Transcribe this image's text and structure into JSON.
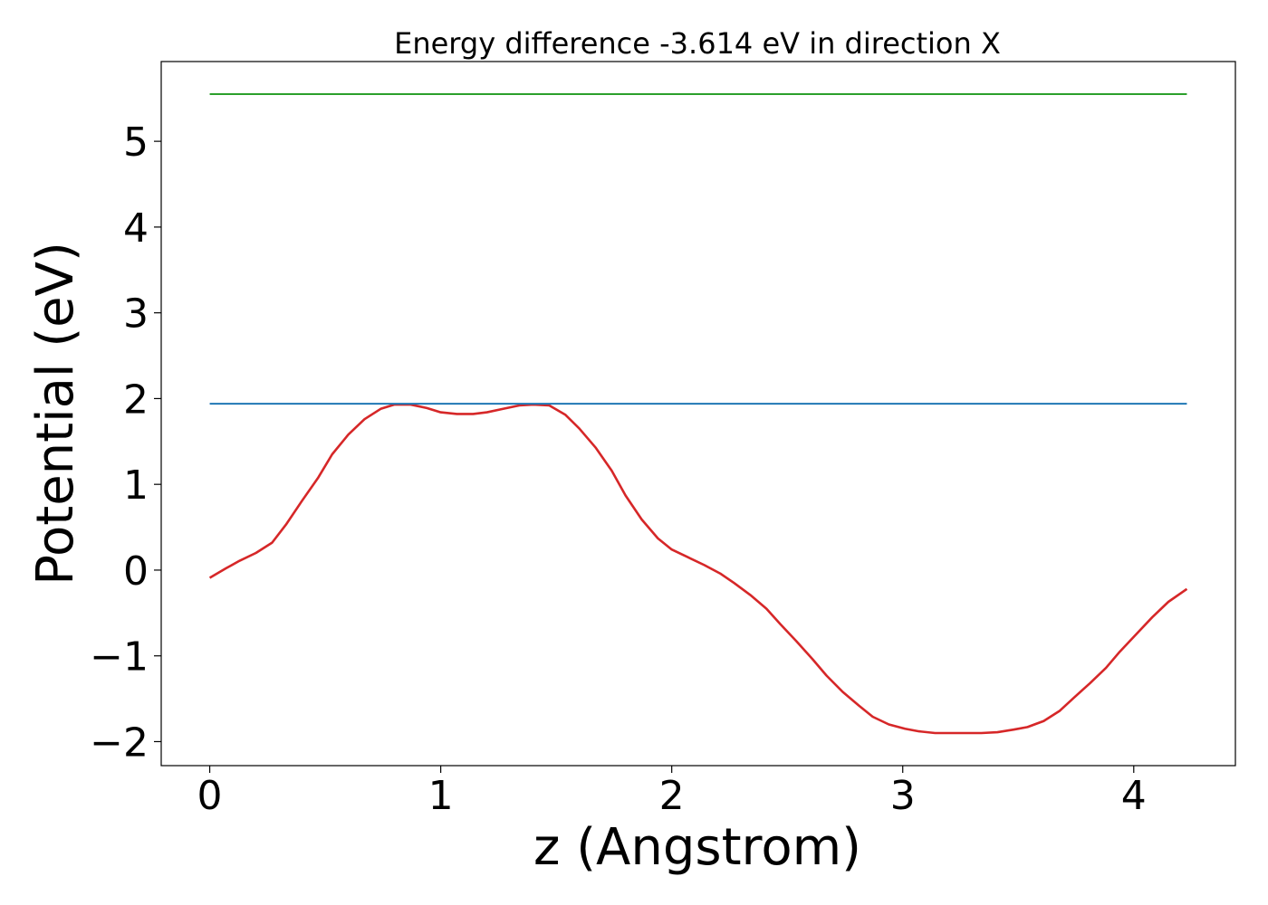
{
  "chart_data": {
    "type": "line",
    "title": "Energy difference -3.614 eV in direction X",
    "xlabel": "z (Angstrom)",
    "ylabel": "Potential (eV)",
    "xlim": [
      -0.21,
      4.44
    ],
    "ylim": [
      -2.28,
      5.93
    ],
    "xticks": [
      0,
      1,
      2,
      3,
      4
    ],
    "yticks": [
      -2,
      -1,
      0,
      1,
      2,
      3,
      4,
      5
    ],
    "xtick_labels": [
      "0",
      "1",
      "2",
      "3",
      "4"
    ],
    "ytick_labels": [
      "−2",
      "−1",
      "0",
      "1",
      "2",
      "3",
      "4",
      "5"
    ],
    "grid": false,
    "legend": false,
    "series": [
      {
        "color": "#d62728",
        "x": [
          0,
          0.07,
          0.13,
          0.2,
          0.27,
          0.33,
          0.4,
          0.47,
          0.53,
          0.6,
          0.67,
          0.74,
          0.8,
          0.87,
          0.94,
          1.0,
          1.07,
          1.14,
          1.2,
          1.27,
          1.34,
          1.4,
          1.47,
          1.54,
          1.6,
          1.67,
          1.74,
          1.8,
          1.87,
          1.94,
          2.0,
          2.07,
          2.14,
          2.21,
          2.27,
          2.34,
          2.41,
          2.47,
          2.54,
          2.61,
          2.67,
          2.74,
          2.81,
          2.87,
          2.94,
          3.01,
          3.07,
          3.14,
          3.21,
          3.28,
          3.34,
          3.41,
          3.48,
          3.54,
          3.61,
          3.68,
          3.74,
          3.81,
          3.88,
          3.94,
          4.01,
          4.08,
          4.15,
          4.23
        ],
        "y": [
          -0.09,
          0.02,
          0.11,
          0.2,
          0.32,
          0.53,
          0.81,
          1.08,
          1.35,
          1.58,
          1.76,
          1.88,
          1.93,
          1.93,
          1.89,
          1.84,
          1.82,
          1.82,
          1.84,
          1.88,
          1.92,
          1.93,
          1.92,
          1.81,
          1.65,
          1.43,
          1.16,
          0.87,
          0.59,
          0.37,
          0.24,
          0.15,
          0.06,
          -0.04,
          -0.15,
          -0.29,
          -0.45,
          -0.63,
          -0.83,
          -1.04,
          -1.23,
          -1.42,
          -1.58,
          -1.71,
          -1.8,
          -1.85,
          -1.88,
          -1.9,
          -1.9,
          -1.9,
          -1.9,
          -1.89,
          -1.86,
          -1.83,
          -1.76,
          -1.64,
          -1.49,
          -1.32,
          -1.14,
          -0.95,
          -0.75,
          -0.55,
          -0.37,
          -0.22
        ]
      },
      {
        "color": "#1f77b4",
        "x": [
          0,
          4.23
        ],
        "y": [
          1.94,
          1.94
        ]
      },
      {
        "color": "#2ca02c",
        "x": [
          0,
          4.23
        ],
        "y": [
          5.55,
          5.55
        ]
      }
    ]
  }
}
